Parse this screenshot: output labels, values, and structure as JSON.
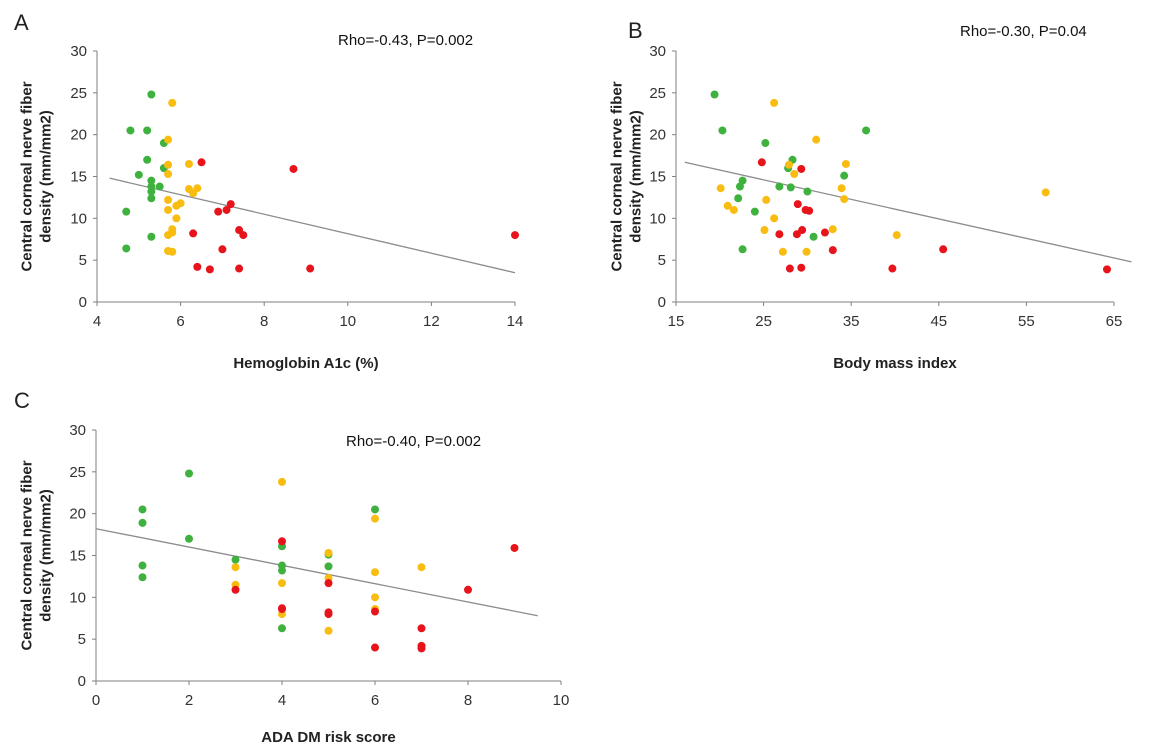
{
  "colors": {
    "green": "#3eb13e",
    "yellow": "#f9bc10",
    "red": "#e8141b",
    "trendline": "#8c8c8c",
    "axis": "#7f7f7f"
  },
  "chart_data": [
    {
      "type": "scatter",
      "panel": "A",
      "annotation": "Rho=-0.43, P=0.002",
      "xlabel": "Hemoglobin A1c (%)",
      "ylabel": "Central corneal nerve fiber density (mm/mm2)",
      "xlim": [
        4,
        14
      ],
      "ylim": [
        0,
        30
      ],
      "xticks": [
        "4",
        "6",
        "8",
        "10",
        "12",
        "14"
      ],
      "yticks": [
        "0",
        "5",
        "10",
        "15",
        "20",
        "25",
        "30"
      ],
      "grid": false,
      "trendline": {
        "x": [
          4.3,
          14
        ],
        "y": [
          14.8,
          3.5
        ]
      },
      "series": [
        {
          "color": "green",
          "points": [
            [
              5.3,
              24.8
            ],
            [
              4.8,
              20.5
            ],
            [
              5.2,
              20.5
            ],
            [
              5.2,
              17
            ],
            [
              5.6,
              16
            ],
            [
              5.0,
              15.2
            ],
            [
              5.3,
              14.5
            ],
            [
              5.3,
              13.8
            ],
            [
              5.5,
              13.8
            ],
            [
              5.3,
              13.2
            ],
            [
              5.3,
              12.4
            ],
            [
              4.7,
              10.8
            ],
            [
              5.3,
              7.8
            ],
            [
              4.7,
              6.4
            ],
            [
              5.6,
              19.0
            ]
          ]
        },
        {
          "color": "yellow",
          "points": [
            [
              5.8,
              23.8
            ],
            [
              5.7,
              19.4
            ],
            [
              5.7,
              16.4
            ],
            [
              6.2,
              16.5
            ],
            [
              5.7,
              15.3
            ],
            [
              6.2,
              13.5
            ],
            [
              6.4,
              13.6
            ],
            [
              6.3,
              13.0
            ],
            [
              5.7,
              12.2
            ],
            [
              6.0,
              11.8
            ],
            [
              5.9,
              11.5
            ],
            [
              5.7,
              11.0
            ],
            [
              5.9,
              10.0
            ],
            [
              5.8,
              8.7
            ],
            [
              5.8,
              8.3
            ],
            [
              5.7,
              8.0
            ],
            [
              5.7,
              6.1
            ],
            [
              5.8,
              6.0
            ]
          ]
        },
        {
          "color": "red",
          "points": [
            [
              6.5,
              16.7
            ],
            [
              8.7,
              15.9
            ],
            [
              7.2,
              11.7
            ],
            [
              7.1,
              11.0
            ],
            [
              6.9,
              10.8
            ],
            [
              7.4,
              8.6
            ],
            [
              7.5,
              8.0
            ],
            [
              6.3,
              8.2
            ],
            [
              7.0,
              6.3
            ],
            [
              6.4,
              4.2
            ],
            [
              6.7,
              3.9
            ],
            [
              7.4,
              4.0
            ],
            [
              9.1,
              4.0
            ],
            [
              14.0,
              8.0
            ]
          ]
        }
      ]
    },
    {
      "type": "scatter",
      "panel": "B",
      "annotation": "Rho=-0.30, P=0.04",
      "xlabel": "Body mass index",
      "ylabel": "Central corneal nerve fiber density (mm/mm2)",
      "xlim": [
        15,
        65
      ],
      "ylim": [
        0,
        30
      ],
      "xticks": [
        "15",
        "25",
        "35",
        "45",
        "55",
        "65"
      ],
      "yticks": [
        "0",
        "5",
        "10",
        "15",
        "20",
        "25",
        "30"
      ],
      "grid": false,
      "trendline": {
        "x": [
          16,
          67
        ],
        "y": [
          16.7,
          4.8
        ]
      },
      "series": [
        {
          "color": "green",
          "points": [
            [
              19.4,
              24.8
            ],
            [
              20.3,
              20.5
            ],
            [
              36.7,
              20.5
            ],
            [
              25.2,
              19.0
            ],
            [
              28.3,
              17.0
            ],
            [
              27.8,
              16.0
            ],
            [
              34.2,
              15.1
            ],
            [
              22.6,
              14.5
            ],
            [
              22.3,
              13.8
            ],
            [
              26.8,
              13.8
            ],
            [
              28.1,
              13.7
            ],
            [
              30.0,
              13.2
            ],
            [
              22.1,
              12.4
            ],
            [
              24.0,
              10.8
            ],
            [
              30.7,
              7.8
            ],
            [
              22.6,
              6.3
            ]
          ]
        },
        {
          "color": "yellow",
          "points": [
            [
              26.2,
              23.8
            ],
            [
              31.0,
              19.4
            ],
            [
              27.9,
              16.4
            ],
            [
              34.4,
              16.5
            ],
            [
              28.5,
              15.3
            ],
            [
              25.3,
              12.2
            ],
            [
              20.1,
              13.6
            ],
            [
              33.9,
              13.6
            ],
            [
              34.2,
              12.3
            ],
            [
              20.9,
              11.5
            ],
            [
              21.6,
              11.0
            ],
            [
              26.2,
              10.0
            ],
            [
              25.1,
              8.6
            ],
            [
              32.9,
              8.7
            ],
            [
              40.2,
              8.0
            ],
            [
              27.2,
              6.0
            ],
            [
              29.9,
              6.0
            ],
            [
              57.2,
              13.1
            ]
          ]
        },
        {
          "color": "red",
          "points": [
            [
              24.8,
              16.7
            ],
            [
              29.3,
              15.9
            ],
            [
              28.9,
              11.7
            ],
            [
              29.8,
              11.0
            ],
            [
              30.2,
              10.9
            ],
            [
              29.4,
              8.6
            ],
            [
              32.0,
              8.3
            ],
            [
              26.8,
              8.1
            ],
            [
              28.8,
              8.1
            ],
            [
              32.9,
              6.2
            ],
            [
              45.5,
              6.3
            ],
            [
              28.0,
              4.0
            ],
            [
              29.3,
              4.1
            ],
            [
              39.7,
              4.0
            ],
            [
              64.2,
              3.9
            ]
          ]
        }
      ]
    },
    {
      "type": "scatter",
      "panel": "C",
      "annotation": "Rho=-0.40, P=0.002",
      "xlabel": "ADA DM risk score",
      "ylabel": "Central corneal nerve fiber density (mm/mm2)",
      "xlim": [
        0,
        10
      ],
      "ylim": [
        0,
        30
      ],
      "xticks": [
        "0",
        "2",
        "4",
        "6",
        "8",
        "10"
      ],
      "yticks": [
        "0",
        "5",
        "10",
        "15",
        "20",
        "25",
        "30"
      ],
      "grid": false,
      "trendline": {
        "x": [
          0,
          9.5
        ],
        "y": [
          18.2,
          7.8
        ]
      },
      "series": [
        {
          "color": "green",
          "points": [
            [
              1,
              20.5
            ],
            [
              1,
              18.9
            ],
            [
              1,
              13.8
            ],
            [
              1,
              12.4
            ],
            [
              2,
              24.8
            ],
            [
              2,
              17.0
            ],
            [
              3,
              14.5
            ],
            [
              4,
              16.1
            ],
            [
              4,
              13.8
            ],
            [
              4,
              13.2
            ],
            [
              4,
              6.3
            ],
            [
              5,
              15.1
            ],
            [
              5,
              13.7
            ],
            [
              6,
              20.5
            ]
          ]
        },
        {
          "color": "yellow",
          "points": [
            [
              3,
              13.6
            ],
            [
              3,
              11.5
            ],
            [
              4,
              23.8
            ],
            [
              4,
              11.7
            ],
            [
              4,
              8.0
            ],
            [
              5,
              15.3
            ],
            [
              5,
              12.3
            ],
            [
              5,
              6.0
            ],
            [
              6,
              19.4
            ],
            [
              6,
              13.0
            ],
            [
              6,
              10.0
            ],
            [
              6,
              8.6
            ],
            [
              7,
              13.6
            ]
          ]
        },
        {
          "color": "red",
          "points": [
            [
              3,
              10.9
            ],
            [
              4,
              16.7
            ],
            [
              4,
              8.7
            ],
            [
              4,
              8.6
            ],
            [
              5,
              11.7
            ],
            [
              5,
              8.2
            ],
            [
              5,
              8.0
            ],
            [
              6,
              8.3
            ],
            [
              6,
              4.0
            ],
            [
              7,
              6.3
            ],
            [
              7,
              4.2
            ],
            [
              7,
              3.9
            ],
            [
              8,
              10.9
            ],
            [
              9,
              15.9
            ]
          ]
        }
      ]
    }
  ]
}
